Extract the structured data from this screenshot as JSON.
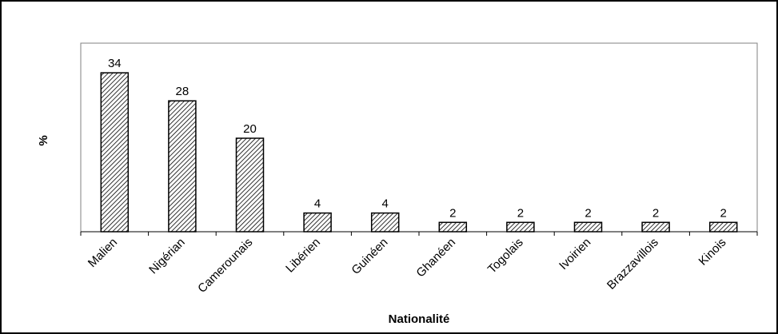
{
  "chart_data": {
    "type": "bar",
    "categories": [
      "Malien",
      "Nigérian",
      "Camerounais",
      "Libérien",
      "Guinéen",
      "Ghanéen",
      "Togolais",
      "Ivoirien",
      "Brazzavillois",
      "Kinois"
    ],
    "values": [
      34,
      28,
      20,
      4,
      4,
      2,
      2,
      2,
      2,
      2
    ],
    "data_labels": [
      "34",
      "28",
      "20",
      "4",
      "4",
      "2",
      "2",
      "2",
      "2",
      "2"
    ],
    "title": "",
    "xlabel": "Nationalité",
    "ylabel": "%",
    "ylim": [
      0,
      40
    ],
    "grid": false,
    "legend": "none",
    "bar_fill": "diagonal-hatch",
    "colors": {
      "bar_stroke": "#000000",
      "hatch": "#000000",
      "background": "#ffffff"
    }
  }
}
